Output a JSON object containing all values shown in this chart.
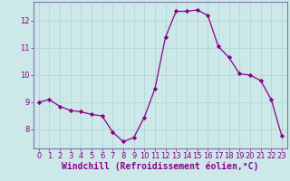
{
  "x": [
    0,
    1,
    2,
    3,
    4,
    5,
    6,
    7,
    8,
    9,
    10,
    11,
    12,
    13,
    14,
    15,
    16,
    17,
    18,
    19,
    20,
    21,
    22,
    23
  ],
  "y": [
    9.0,
    9.1,
    8.85,
    8.7,
    8.65,
    8.55,
    8.5,
    7.9,
    7.55,
    7.7,
    8.45,
    9.5,
    11.4,
    12.35,
    12.35,
    12.4,
    12.2,
    11.05,
    10.65,
    10.05,
    10.0,
    9.8,
    9.1,
    7.75
  ],
  "line_color": "#8b008b",
  "marker": "D",
  "marker_size": 2.2,
  "bg_color": "#cce8e8",
  "grid_color": "#b0d8d8",
  "axis_color": "#8b008b",
  "spine_color": "#7a7aaa",
  "xlabel": "Windchill (Refroidissement éolien,°C)",
  "xlabel_color": "#8b008b",
  "xlim": [
    -0.5,
    23.5
  ],
  "ylim": [
    7.3,
    12.7
  ],
  "yticks": [
    8,
    9,
    10,
    11,
    12
  ],
  "xticks": [
    0,
    1,
    2,
    3,
    4,
    5,
    6,
    7,
    8,
    9,
    10,
    11,
    12,
    13,
    14,
    15,
    16,
    17,
    18,
    19,
    20,
    21,
    22,
    23
  ],
  "tick_fontsize": 6.0,
  "xlabel_fontsize": 7.0
}
